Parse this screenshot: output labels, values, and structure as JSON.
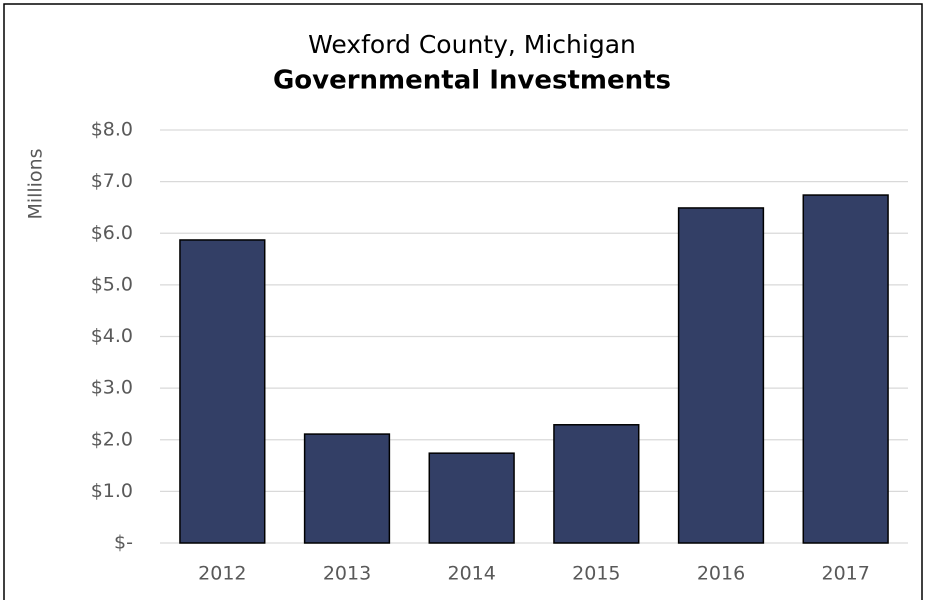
{
  "chart_data": {
    "type": "bar",
    "title": "Wexford County, Michigan",
    "subtitle": "Governmental Investments",
    "y_label": "Millions",
    "categories": [
      "2012",
      "2013",
      "2014",
      "2015",
      "2016",
      "2017"
    ],
    "values": [
      5.87,
      2.11,
      1.74,
      2.29,
      6.49,
      6.74
    ],
    "color": "#333f66",
    "ylim": [
      0,
      8
    ],
    "yticks": [
      {
        "value": 0,
        "label": "$-"
      },
      {
        "value": 1,
        "label": "$1.0"
      },
      {
        "value": 2,
        "label": "$2.0"
      },
      {
        "value": 3,
        "label": "$3.0"
      },
      {
        "value": 4,
        "label": "$4.0"
      },
      {
        "value": 5,
        "label": "$5.0"
      },
      {
        "value": 6,
        "label": "$6.0"
      },
      {
        "value": 7,
        "label": "$7.0"
      },
      {
        "value": 8,
        "label": "$8.0"
      }
    ],
    "grid": true
  }
}
